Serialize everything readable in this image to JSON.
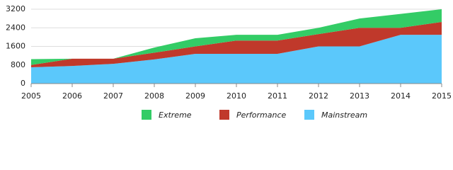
{
  "chart_data": {
    "type": "stacked-area",
    "categories": [
      "2005",
      "2006",
      "2007",
      "2008",
      "2009",
      "2010",
      "2011",
      "2012",
      "2013",
      "2014",
      "2015"
    ],
    "series": [
      {
        "name": "Extreme",
        "color": "#33cc66",
        "values": [
          250,
          0,
          0,
          220,
          350,
          250,
          250,
          270,
          400,
          600,
          550
        ]
      },
      {
        "name": "Performance",
        "color": "#c0392b",
        "values": [
          100,
          310,
          220,
          290,
          320,
          570,
          570,
          530,
          800,
          300,
          550
        ]
      },
      {
        "name": "Mainstream",
        "color": "#5bc8fb",
        "values": [
          700,
          760,
          850,
          1040,
          1280,
          1280,
          1280,
          1600,
          1600,
          2100,
          2100
        ]
      }
    ],
    "ylim": [
      0,
      3200
    ],
    "yticks": [
      0,
      800,
      1600,
      2400,
      3200
    ],
    "grid": true
  }
}
